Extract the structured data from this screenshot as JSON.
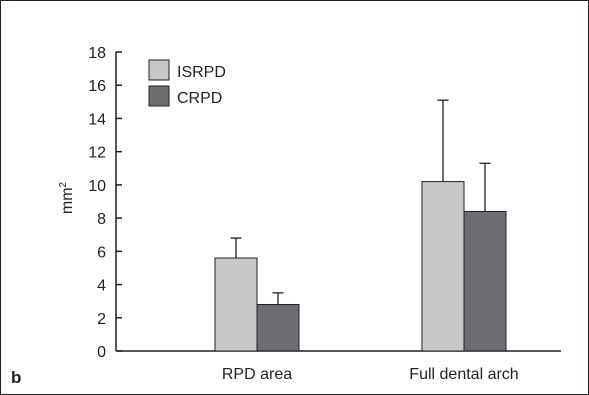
{
  "chart_data": {
    "type": "bar",
    "panel_label": "b",
    "ylabel": "mm",
    "ylabel_superscript": "2",
    "ylim": [
      0,
      18
    ],
    "yticks": [
      0,
      2,
      4,
      6,
      8,
      10,
      12,
      14,
      16,
      18
    ],
    "ytick_labels": [
      "0",
      "2",
      "4",
      "6",
      "8",
      "10",
      "12",
      "14",
      "16",
      "18"
    ],
    "categories": [
      "RPD area",
      "Full dental arch"
    ],
    "series": [
      {
        "name": "ISRPD",
        "color": "#c8c8c8",
        "values": [
          5.6,
          10.2
        ],
        "errors": [
          1.2,
          4.9
        ]
      },
      {
        "name": "CRPD",
        "color": "#6d6e71",
        "values": [
          2.8,
          8.4
        ],
        "errors": [
          0.7,
          2.9
        ]
      }
    ],
    "legend_position": "top-left",
    "grid": false,
    "error_bars": "upper only"
  }
}
